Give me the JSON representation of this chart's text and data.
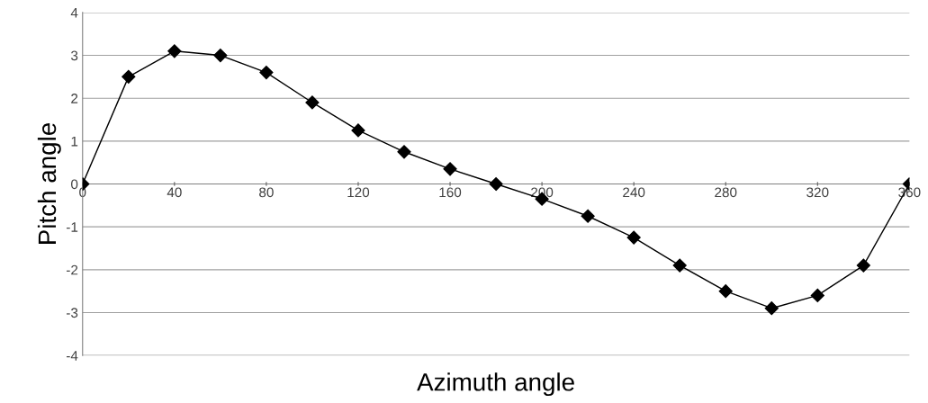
{
  "chart_data": {
    "type": "line",
    "xlabel": "Azimuth angle",
    "ylabel": "Pitch angle",
    "x": [
      0,
      20,
      40,
      60,
      80,
      100,
      120,
      140,
      160,
      180,
      200,
      220,
      240,
      260,
      280,
      300,
      320,
      340,
      360
    ],
    "series": [
      {
        "color": "#000000",
        "values": [
          0,
          2.5,
          3.1,
          3.0,
          2.6,
          1.9,
          1.25,
          0.75,
          0.35,
          0,
          -0.35,
          -0.75,
          -1.25,
          -1.9,
          -2.5,
          -2.9,
          -2.6,
          -1.9,
          0
        ]
      }
    ],
    "xlim": [
      0,
      360
    ],
    "xticks": [
      0,
      40,
      80,
      120,
      160,
      200,
      240,
      280,
      320,
      360
    ],
    "ylim": [
      -4,
      4
    ],
    "yticks": [
      -4,
      -3,
      -2,
      -1,
      0,
      1,
      2,
      3,
      4
    ],
    "grid": "y",
    "marker": "diamond",
    "line_style": "solid"
  }
}
